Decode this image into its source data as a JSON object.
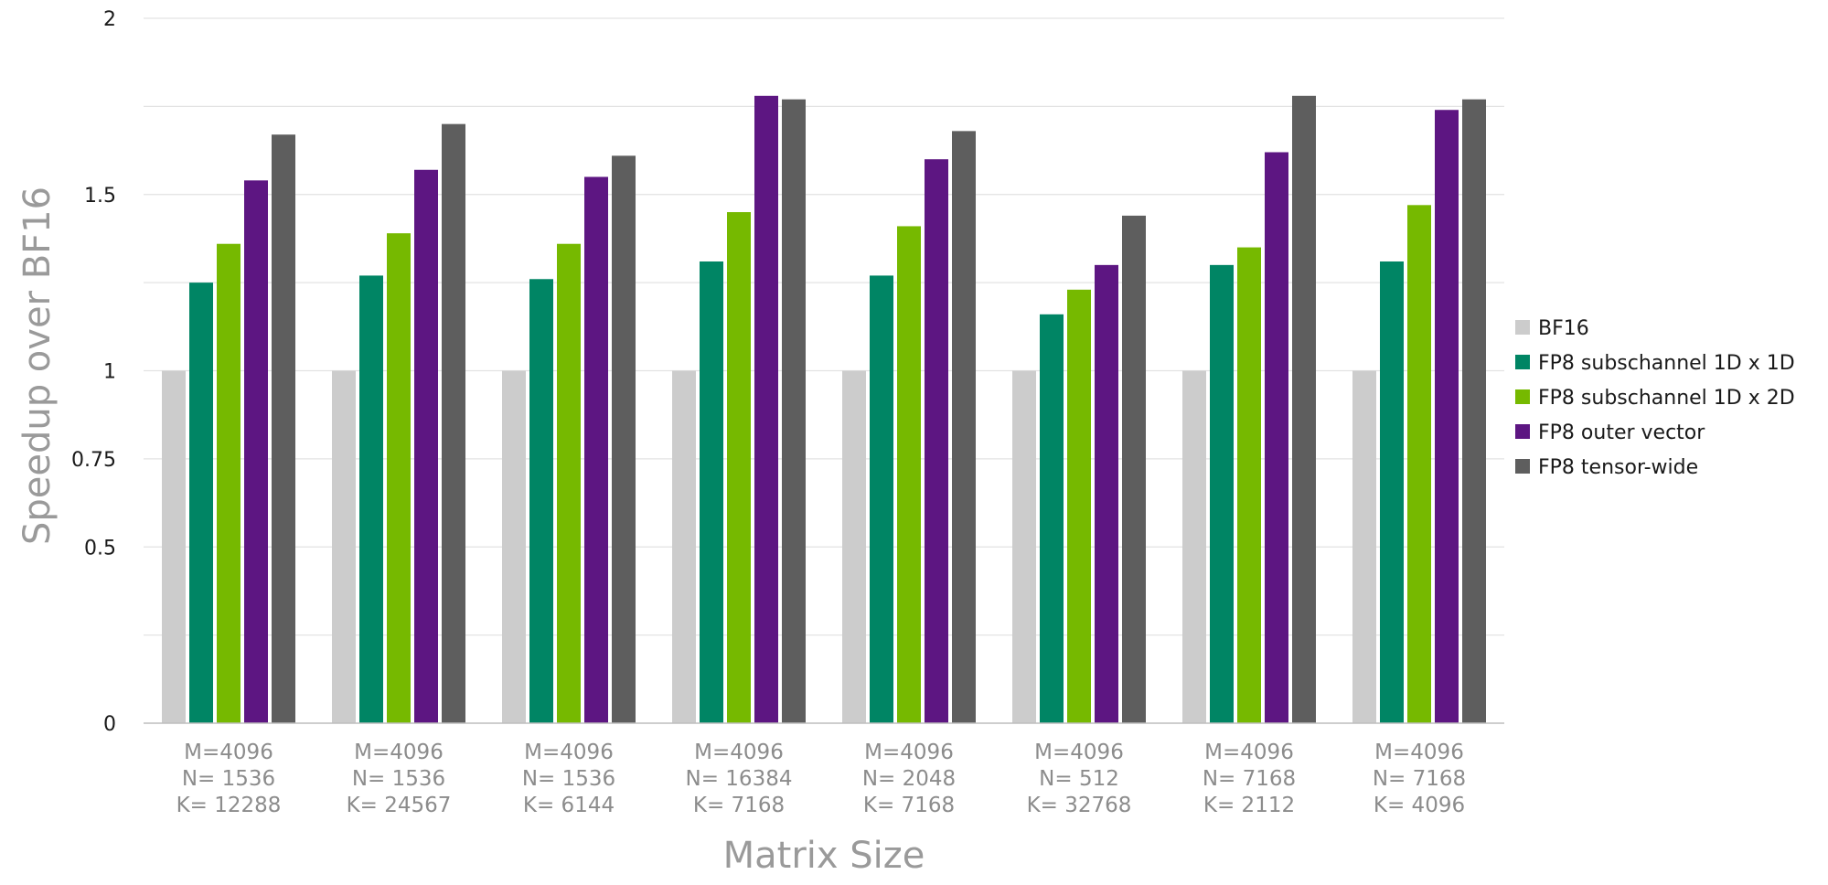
{
  "chart_data": {
    "type": "bar",
    "title": "",
    "xlabel": "Matrix Size",
    "ylabel": "Speedup over BF16",
    "ylim": [
      0,
      2
    ],
    "y_ticks": [
      {
        "value": 0,
        "label": "0"
      },
      {
        "value": 0.5,
        "label": "0.5"
      },
      {
        "value": 0.75,
        "label": "0.75"
      },
      {
        "value": 1,
        "label": "1"
      },
      {
        "value": 1.5,
        "label": "1.5"
      },
      {
        "value": 2,
        "label": "2"
      }
    ],
    "gridlines": [
      0.25,
      0.5,
      0.75,
      1,
      1.25,
      1.5,
      1.75,
      2
    ],
    "grid": true,
    "legend_position": "right",
    "categories": [
      [
        "M=4096",
        "N= 1536",
        "K= 12288"
      ],
      [
        "M=4096",
        "N= 1536",
        "K= 24567"
      ],
      [
        "M=4096",
        "N= 1536",
        "K= 6144"
      ],
      [
        "M=4096",
        "N= 16384",
        "K= 7168"
      ],
      [
        "M=4096",
        "N= 2048",
        "K= 7168"
      ],
      [
        "M=4096",
        "N= 512",
        "K= 32768"
      ],
      [
        "M=4096",
        "N= 7168",
        "K= 2112"
      ],
      [
        "M=4096",
        "N= 7168",
        "K= 4096"
      ]
    ],
    "series": [
      {
        "name": "BF16",
        "color": "#cccccc",
        "values": [
          1,
          1,
          1,
          1,
          1,
          1,
          1,
          1
        ]
      },
      {
        "name": "FP8 subschannel 1D x 1D",
        "color": "#008564",
        "values": [
          1.25,
          1.27,
          1.26,
          1.31,
          1.27,
          1.16,
          1.3,
          1.31
        ]
      },
      {
        "name": "FP8 subschannel 1D x 2D",
        "color": "#76b900",
        "values": [
          1.36,
          1.39,
          1.36,
          1.45,
          1.41,
          1.23,
          1.35,
          1.47
        ]
      },
      {
        "name": "FP8 outer vector",
        "color": "#5d1682",
        "values": [
          1.54,
          1.57,
          1.55,
          1.78,
          1.6,
          1.3,
          1.62,
          1.74
        ]
      },
      {
        "name": "FP8 tensor-wide",
        "color": "#5e5e5e",
        "values": [
          1.67,
          1.7,
          1.61,
          1.77,
          1.68,
          1.44,
          1.78,
          1.77
        ]
      }
    ]
  }
}
